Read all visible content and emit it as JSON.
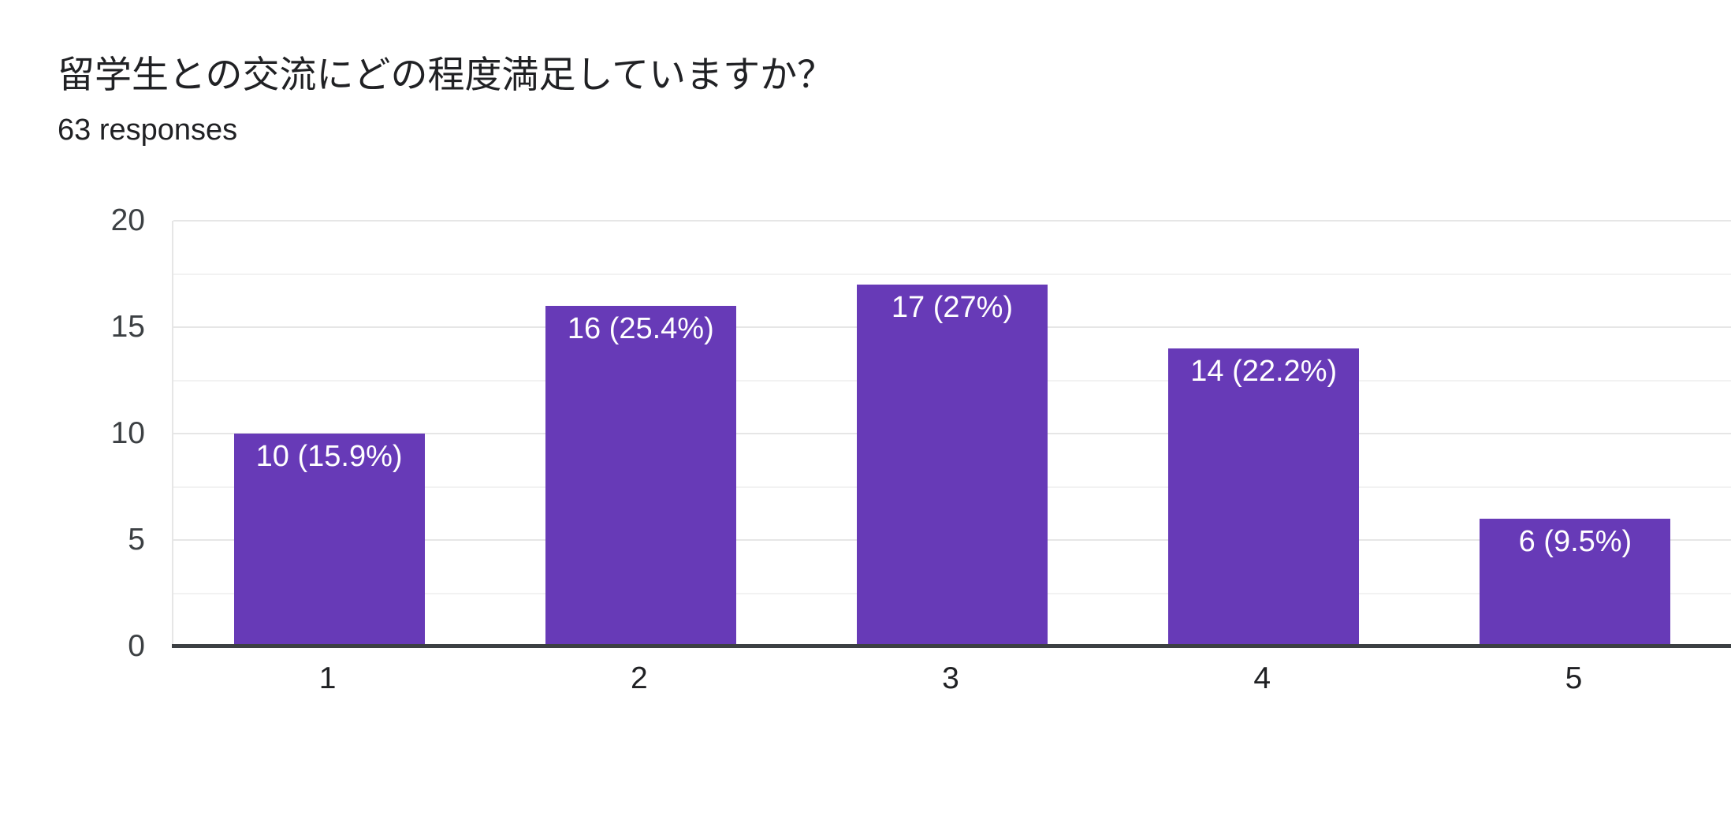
{
  "header": {
    "title": "留学生との交流にどの程度満足していますか？",
    "responses": "63 responses"
  },
  "colors": {
    "bar": "#673ab7",
    "title_text": "#202124",
    "y_axis_text": "#3c4043",
    "x_axis_text": "#202124",
    "bar_label_text": "#ffffff",
    "gridline_major": "#e6e6e6",
    "gridline_minor": "#f2f2f2",
    "axis_baseline": "#3c4043",
    "background": "#ffffff"
  },
  "chart_data": {
    "type": "bar",
    "title": "留学生との交流にどの程度満足していますか？",
    "subtitle": "63 responses",
    "total_responses": 63,
    "categories": [
      "1",
      "2",
      "3",
      "4",
      "5"
    ],
    "values": [
      10,
      16,
      17,
      14,
      6
    ],
    "percentages": [
      15.9,
      25.4,
      27,
      22.2,
      9.5
    ],
    "bar_labels": [
      "10 (15.9%)",
      "16 (25.4%)",
      "17 (27%)",
      "14 (22.2%)",
      "6 (9.5%)"
    ],
    "bar_color": "#673ab7",
    "xlabel": "",
    "ylabel": "",
    "ylim": [
      0,
      20
    ],
    "yticks": [
      0,
      5,
      10,
      15,
      20
    ],
    "grid": "horizontal, major step 5, minor step 2.5",
    "legend": "none"
  }
}
